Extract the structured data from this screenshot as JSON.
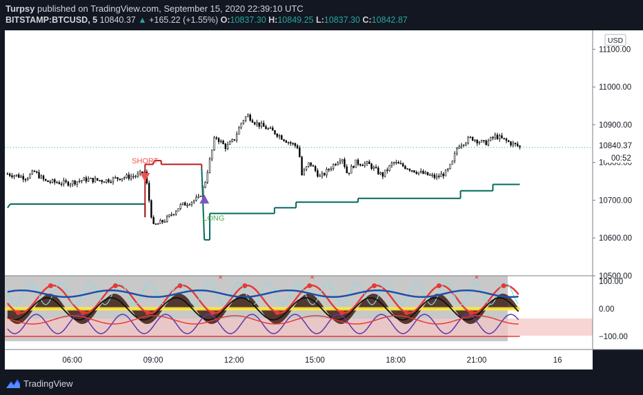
{
  "header": {
    "publisher": "Turpsy",
    "published_text": "published on TradingView.com, September 15, 2020 22:39:10 UTC",
    "symbol": "BITSTAMP:BTCUSD, 5",
    "last": "10840.37",
    "change_arrow": "▲",
    "change": "+165.22 (+1.55%)",
    "o_label": "O:",
    "o": "10837.30",
    "h_label": "H:",
    "h": "10849.25",
    "l_label": "L:",
    "l": "10837.30",
    "c_label": "C:",
    "c": "10842.87",
    "ohlc_color": "#26a69a"
  },
  "footer": {
    "brand": "TradingView",
    "logo_icon": "tradingview-logo-icon"
  },
  "chart_data": [
    {
      "type": "candlestick",
      "title": "",
      "currency_badge": "USD",
      "ylim": [
        10500,
        11150
      ],
      "y_ticks": [
        "11100.00",
        "11000.00",
        "10900.00",
        "10800.00",
        "10700.00",
        "10600.00",
        "10500.00"
      ],
      "y_tick_values": [
        11100,
        11000,
        10900,
        10800,
        10700,
        10600,
        10500
      ],
      "last_price_label": "10840.37",
      "countdown_label": "00:52",
      "price_path": [
        [
          3.6,
          10770
        ],
        [
          4.3,
          10760
        ],
        [
          4.6,
          10775
        ],
        [
          5.0,
          10750
        ],
        [
          5.8,
          10745
        ],
        [
          6.5,
          10755
        ],
        [
          7.2,
          10752
        ],
        [
          7.8,
          10760
        ],
        [
          8.4,
          10765
        ],
        [
          8.7,
          10775
        ],
        [
          8.85,
          10700
        ],
        [
          9.0,
          10630
        ],
        [
          9.5,
          10650
        ],
        [
          10.0,
          10685
        ],
        [
          10.7,
          10705
        ],
        [
          10.9,
          10740
        ],
        [
          11.3,
          10870
        ],
        [
          11.7,
          10840
        ],
        [
          12.0,
          10860
        ],
        [
          12.3,
          10910
        ],
        [
          12.5,
          10925
        ],
        [
          12.8,
          10905
        ],
        [
          13.5,
          10880
        ],
        [
          14.0,
          10855
        ],
        [
          14.4,
          10840
        ],
        [
          14.5,
          10765
        ],
        [
          14.8,
          10800
        ],
        [
          15.2,
          10760
        ],
        [
          15.7,
          10795
        ],
        [
          16.0,
          10815
        ],
        [
          16.2,
          10770
        ],
        [
          16.5,
          10800
        ],
        [
          17.0,
          10795
        ],
        [
          17.5,
          10765
        ],
        [
          17.9,
          10800
        ],
        [
          18.3,
          10790
        ],
        [
          18.8,
          10775
        ],
        [
          19.5,
          10760
        ],
        [
          19.9,
          10775
        ],
        [
          20.1,
          10800
        ],
        [
          20.3,
          10845
        ],
        [
          20.8,
          10865
        ],
        [
          21.3,
          10850
        ],
        [
          21.7,
          10870
        ],
        [
          22.0,
          10860
        ],
        [
          22.3,
          10850
        ],
        [
          22.5,
          10845
        ],
        [
          22.6,
          10840
        ]
      ],
      "stop_line": [
        [
          3.6,
          10680
        ],
        [
          3.7,
          10690
        ],
        [
          8.7,
          10690
        ],
        [
          8.7,
          10655
        ],
        [
          8.7,
          10795
        ],
        [
          9.0,
          10795
        ],
        [
          9.05,
          10805
        ],
        [
          9.3,
          10805
        ],
        [
          9.3,
          10795
        ],
        [
          10.8,
          10795
        ],
        [
          10.8,
          10785
        ],
        [
          10.9,
          10595
        ],
        [
          11.1,
          10595
        ],
        [
          11.1,
          10665
        ],
        [
          13.5,
          10665
        ],
        [
          13.5,
          10680
        ],
        [
          14.3,
          10680
        ],
        [
          14.3,
          10695
        ],
        [
          16.6,
          10695
        ],
        [
          16.6,
          10705
        ],
        [
          20.4,
          10705
        ],
        [
          20.4,
          10725
        ],
        [
          21.6,
          10725
        ],
        [
          21.6,
          10742
        ],
        [
          22.6,
          10742
        ]
      ],
      "signals": [
        {
          "label": "SHORT",
          "x": 8.7,
          "y": 10805,
          "color": "#ef5350",
          "icon": "down-triangle-icon"
        },
        {
          "label": "LONG",
          "x": 10.9,
          "y": 10715,
          "color": "#4caf50",
          "icon": "up-triangle-icon"
        }
      ]
    },
    {
      "type": "oscillator",
      "ylim": [
        -120,
        120
      ],
      "y_ticks": [
        "100.00",
        "0.00",
        "−100.00"
      ],
      "y_tick_values": [
        100,
        0,
        -100
      ],
      "x_ticks": [
        "06:00",
        "09:00",
        "12:00",
        "15:00",
        "18:00",
        "21:00",
        "16"
      ],
      "x_tick_values": [
        6,
        9,
        12,
        15,
        18,
        21,
        24
      ],
      "xlim": [
        3.5,
        25.3
      ]
    }
  ]
}
